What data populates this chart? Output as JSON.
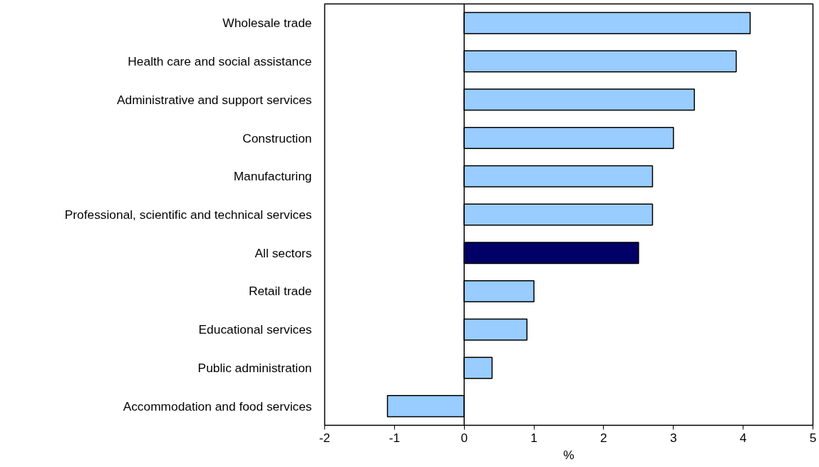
{
  "chart_data": {
    "type": "bar",
    "orientation": "horizontal",
    "xlabel": "%",
    "categories": [
      "Wholesale trade",
      "Health care and social assistance",
      "Administrative and support services",
      "Construction",
      "Manufacturing",
      "Professional, scientific and technical services",
      "All sectors",
      "Retail trade",
      "Educational services",
      "Public administration",
      "Accommodation and food services"
    ],
    "values": [
      4.1,
      3.9,
      3.3,
      3.0,
      2.7,
      2.7,
      2.5,
      1.0,
      0.9,
      0.4,
      -1.1
    ],
    "colors": [
      "#99ccff",
      "#99ccff",
      "#99ccff",
      "#99ccff",
      "#99ccff",
      "#99ccff",
      "#000066",
      "#99ccff",
      "#99ccff",
      "#99ccff",
      "#99ccff"
    ],
    "xlim": [
      -2,
      5
    ],
    "xticks": [
      -2,
      -1,
      0,
      1,
      2,
      3,
      4,
      5
    ],
    "ref_lines": [
      {
        "axis": "x",
        "value": 0,
        "color": "#000000"
      }
    ],
    "grid": false
  }
}
